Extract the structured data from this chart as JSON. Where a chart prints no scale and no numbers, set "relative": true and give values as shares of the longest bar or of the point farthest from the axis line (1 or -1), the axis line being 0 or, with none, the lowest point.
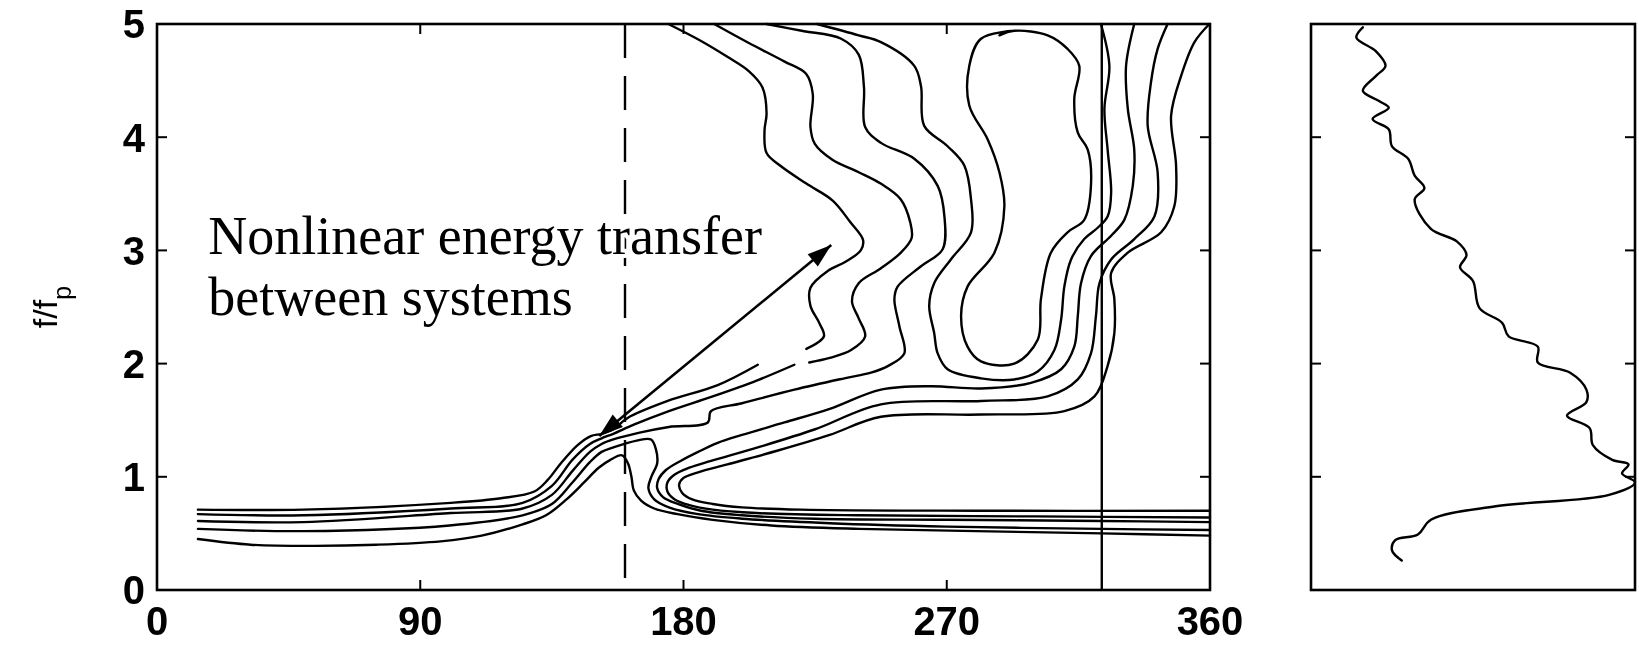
{
  "chart_data": [
    {
      "type": "line",
      "ylabel": "f/f$_{p}$",
      "xlim": [
        0,
        360
      ],
      "xticks": [
        0,
        90,
        180,
        270,
        360
      ],
      "ylim": [
        0,
        5
      ],
      "yticks": [
        0,
        1,
        2,
        3,
        4,
        5
      ],
      "annotations": [
        {
          "text": "Nonlinear energy transfer\nbetween systems",
          "x": 151.2,
          "y": 1.36
        }
      ],
      "ref_lines": [
        {
          "axis": "x",
          "value": 160,
          "line_style": "dashed"
        },
        {
          "axis": "x",
          "value": 323,
          "line_style": "solid"
        }
      ],
      "series": [
        {
          "color": "#000000",
          "x": [
            14,
            32,
            54,
            75,
            97,
            111,
            125,
            133,
            140,
            146,
            151,
            155,
            159,
            161,
            162.2,
            163,
            165.5,
            170,
            178,
            190,
            210,
            240,
            280,
            323,
            360
          ],
          "values": [
            0.45,
            0.4,
            0.39,
            0.4,
            0.43,
            0.48,
            0.58,
            0.66,
            0.8,
            0.95,
            1.08,
            1.15,
            1.19,
            1.12,
            1,
            0.88,
            0.79,
            0.72,
            0.67,
            0.62,
            0.57,
            0.54,
            0.52,
            0.5,
            0.48
          ]
        },
        {
          "color": "#000000",
          "x": [
            14,
            50,
            100,
            125,
            135,
            142,
            148,
            152,
            156,
            159.8,
            164,
            168.9,
            170.6,
            171,
            169,
            168,
            170,
            175,
            185,
            200,
            230,
            270,
            323,
            360
          ],
          "values": [
            0.54,
            0.52,
            0.57,
            0.66,
            0.76,
            0.95,
            1.13,
            1.22,
            1.26,
            1.29,
            1.32,
            1.33,
            1.24,
            1.12,
            1,
            0.9,
            0.8,
            0.73,
            0.67,
            0.63,
            0.59,
            0.56,
            0.54,
            0.53
          ]
        },
        {
          "color": "#000000",
          "x": [
            14,
            50,
            100.5,
            125,
            135,
            142,
            148,
            152,
            156,
            165,
            175,
            188.3,
            189.4,
            200,
            217.9,
            235,
            244.1,
            250,
            255.5,
            253.8,
            252.1,
            253.2,
            261.2,
            268.6,
            269.2,
            266.9,
            258.9,
            247.5,
            242.1,
            241.7,
            239.9,
            233.9,
            220.4,
            208.4
          ],
          "values": [
            0.61,
            0.6,
            0.68,
            0.72,
            0.84,
            1.05,
            1.22,
            1.29,
            1.33,
            1.39,
            1.44,
            1.48,
            1.58,
            1.65,
            1.77,
            1.87,
            1.92,
            1.98,
            2.09,
            2.33,
            2.57,
            2.68,
            2.86,
            3.01,
            3.3,
            3.57,
            3.81,
            3.95,
            4.09,
            4.44,
            4.73,
            4.87,
            4.94,
            5
          ]
        },
        {
          "color": "#000000",
          "x": [
            14,
            50,
            100.5,
            125,
            135,
            142,
            148,
            152,
            156,
            163,
            175,
            190,
            205,
            217.9
          ],
          "values": [
            0.67,
            0.66,
            0.72,
            0.77,
            0.92,
            1.15,
            1.29,
            1.34,
            1.38,
            1.46,
            1.58,
            1.71,
            1.85,
            1.99
          ]
        },
        {
          "color": "#000000",
          "x": [
            14,
            50,
            100.5,
            117.6,
            129,
            133.5,
            138.1,
            143.8,
            148.3,
            152,
            156,
            160.9,
            174.6,
            191.7,
            205.4
          ],
          "values": [
            0.71,
            0.71,
            0.77,
            0.81,
            0.87,
            0.97,
            1.12,
            1.28,
            1.36,
            1.38,
            1.42,
            1.52,
            1.67,
            1.81,
            1.99
          ]
        },
        {
          "color": "#000000",
          "x": [
            174.8,
            186,
            195,
            202.5,
            207,
            208.4,
            207.7,
            208.4,
            213,
            222,
            231,
            237,
            241.4,
            240.6,
            235.4,
            229.4,
            223.4,
            223.4,
            226.4,
            228,
            222
          ],
          "values": [
            5,
            4.85,
            4.71,
            4.58,
            4.44,
            4.21,
            4.06,
            3.86,
            3.75,
            3.59,
            3.44,
            3.25,
            3.09,
            3,
            2.9,
            2.82,
            2.67,
            2.51,
            2.36,
            2.24,
            2.13
          ]
        },
        {
          "color": "#000000",
          "x": [
            190.5,
            202.5,
            214.4,
            221.9,
            224.2,
            223.4,
            224.9,
            230.9,
            239.9,
            247.4,
            254.3,
            257.5,
            258,
            254.3,
            247.4,
            239.9,
            237.6,
            239.9,
            242.1,
            237.3,
            230,
            223
          ],
          "values": [
            5,
            4.83,
            4.67,
            4.56,
            4.38,
            4.09,
            3.94,
            3.8,
            3.69,
            3.59,
            3.45,
            3.25,
            3.11,
            2.98,
            2.84,
            2.71,
            2.55,
            2.4,
            2.24,
            2.12,
            2.05,
            2.01
          ]
        },
        {
          "color": "#000000",
          "x": [
            225.7,
            239.9,
            247.5,
            258.9,
            261.2,
            262.3,
            270.3,
            276,
            278.3,
            278.3,
            271.4,
            265.7,
            264,
            265.7,
            266.9,
            270.3,
            281.7,
            293.1,
            301.1,
            306.8,
            309.1,
            310.2,
            312.5,
            317,
            321.6,
            325,
            326.2,
            325,
            323.9,
            325.6,
            322.7
          ],
          "values": [
            5,
            4.9,
            4.84,
            4.63,
            4.45,
            4.1,
            3.92,
            3.75,
            3.45,
            3.16,
            2.92,
            2.71,
            2.51,
            2.27,
            2.09,
            1.95,
            1.87,
            1.86,
            1.93,
            2.12,
            2.39,
            2.68,
            2.92,
            3.1,
            3.2,
            3.3,
            3.51,
            3.89,
            4.25,
            4.63,
            5
          ]
        },
        {
          "color": "#000000",
          "x": [
            293.1,
            281.7,
            277.7,
            277.7,
            284,
            288,
            289.7,
            286.3,
            277.1,
            274.9,
            277.1,
            281.7,
            293.1,
            301.1,
            302.2,
            305.6,
            311.3,
            317,
            319.3,
            318.2,
            314.8,
            313.6,
            315.3,
            311.3,
            304.5,
            293.1,
            288
          ],
          "values": [
            4.94,
            4.87,
            4.63,
            4.28,
            3.98,
            3.69,
            3.39,
            2.98,
            2.68,
            2.42,
            2.15,
            2.02,
            2,
            2.21,
            2.57,
            2.98,
            3.16,
            3.27,
            3.57,
            3.89,
            4.04,
            4.34,
            4.63,
            4.78,
            4.9,
            4.94,
            4.9
          ]
        },
        {
          "color": "#000000",
          "x": [
            360,
            323,
            270,
            225,
            200,
            186,
            178,
            173,
            171,
            171.5,
            174,
            179,
            185,
            191.7,
            200,
            214.5,
            230,
            247.5,
            264.6,
            281.7,
            298.8,
            309.1,
            313.6,
            314.8,
            315.9,
            319.3,
            326.2,
            330.7,
            333.6,
            334.1,
            331.9,
            331.3,
            334.1
          ],
          "values": [
            0.6,
            0.61,
            0.62,
            0.63,
            0.66,
            0.7,
            0.76,
            0.82,
            0.9,
            0.98,
            1.06,
            1.14,
            1.22,
            1.3,
            1.37,
            1.48,
            1.6,
            1.77,
            1.8,
            1.78,
            1.83,
            1.95,
            2.15,
            2.42,
            2.71,
            2.95,
            3.13,
            3.27,
            3.57,
            3.89,
            4.25,
            4.63,
            5
          ]
        },
        {
          "color": "#000000",
          "x": [
            360,
            300,
            240,
            205,
            190,
            182,
            177,
            174.5,
            174.5,
            177,
            182,
            189.4,
            205.4,
            225,
            247.5,
            281.7,
            304.5,
            314.8,
            319.3,
            321,
            322.2,
            326.2,
            334.1,
            341,
            342.1,
            338.7,
            339.8,
            342.1,
            345.5
          ],
          "values": [
            0.64,
            0.65,
            0.66,
            0.68,
            0.71,
            0.75,
            0.8,
            0.87,
            0.95,
            1.02,
            1.08,
            1.14,
            1.26,
            1.42,
            1.64,
            1.67,
            1.71,
            1.86,
            2.09,
            2.42,
            2.71,
            2.92,
            3.1,
            3.3,
            3.69,
            4.1,
            4.48,
            4.78,
            5
          ]
        },
        {
          "color": "#000000",
          "x": [
            360,
            280,
            220,
            200,
            190,
            183,
            179.5,
            178.5,
            180,
            185,
            195,
            212,
            230,
            247.5,
            281.7,
            310.2,
            320.5,
            325,
            327.3,
            327.3,
            326.2,
            331.9,
            343.3,
            347.8,
            348.4,
            346.7,
            350.1,
            354.7,
            359.8
          ],
          "values": [
            0.7,
            0.7,
            0.71,
            0.73,
            0.76,
            0.8,
            0.86,
            0.93,
            0.99,
            1.04,
            1.11,
            1.23,
            1.37,
            1.53,
            1.55,
            1.58,
            1.71,
            1.98,
            2.27,
            2.57,
            2.8,
            2.98,
            3.16,
            3.39,
            3.75,
            4.19,
            4.54,
            4.84,
            5
          ]
        }
      ]
    },
    {
      "type": "line",
      "relative": true,
      "orientation": "horizontal",
      "ylim": [
        0,
        5
      ],
      "yticks": [
        0,
        1,
        2,
        3,
        4,
        5
      ],
      "tick_labels": false,
      "series": [
        {
          "color": "#000000",
          "x": [
            4.97,
            4.88,
            4.76,
            4.63,
            4.54,
            4.41,
            4.32,
            4.26,
            4.16,
            4.07,
            3.92,
            3.81,
            3.66,
            3.55,
            3.45,
            3.19,
            3.08,
            2.96,
            2.85,
            2.73,
            2.49,
            2.36,
            2.24,
            2.15,
            2.01,
            1.92,
            1.77,
            1.66,
            1.54,
            1.43,
            1.28,
            1.15,
            1.11,
            1.03,
            0.95,
            0.84,
            0.74,
            0.62,
            0.49,
            0.44,
            0.35,
            0.26
          ],
          "values": [
            0.16,
            0.14,
            0.2,
            0.23,
            0.2,
            0.16,
            0.21,
            0.24,
            0.19,
            0.24,
            0.25,
            0.3,
            0.32,
            0.35,
            0.32,
            0.37,
            0.45,
            0.48,
            0.46,
            0.5,
            0.52,
            0.59,
            0.61,
            0.7,
            0.7,
            0.8,
            0.85,
            0.85,
            0.79,
            0.86,
            0.87,
            0.93,
            0.98,
            0.96,
            1,
            0.92,
            0.57,
            0.37,
            0.33,
            0.26,
            0.25,
            0.28
          ]
        }
      ]
    }
  ]
}
